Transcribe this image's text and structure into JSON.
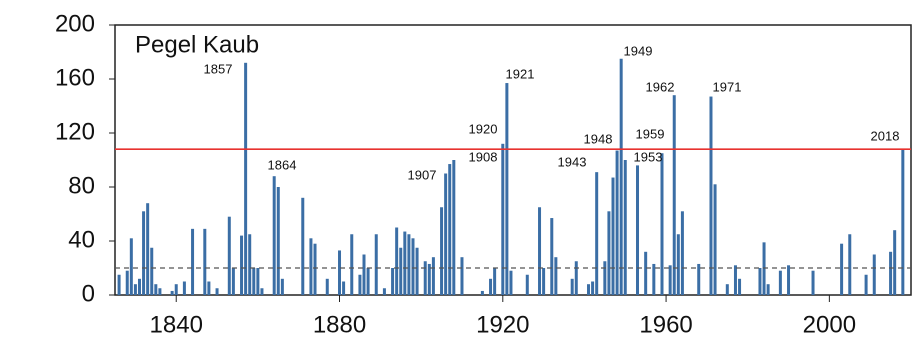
{
  "chart_data": {
    "type": "bar",
    "title": "Pegel Kaub",
    "x": [
      1826,
      1828,
      1829,
      1830,
      1831,
      1832,
      1833,
      1834,
      1835,
      1836,
      1839,
      1840,
      1842,
      1844,
      1847,
      1848,
      1850,
      1853,
      1854,
      1856,
      1857,
      1858,
      1859,
      1860,
      1861,
      1864,
      1865,
      1866,
      1871,
      1873,
      1874,
      1877,
      1880,
      1881,
      1883,
      1885,
      1886,
      1887,
      1889,
      1891,
      1893,
      1894,
      1895,
      1896,
      1897,
      1898,
      1899,
      1901,
      1902,
      1903,
      1905,
      1906,
      1907,
      1908,
      1910,
      1915,
      1917,
      1918,
      1920,
      1921,
      1922,
      1926,
      1929,
      1930,
      1932,
      1933,
      1937,
      1938,
      1941,
      1942,
      1943,
      1945,
      1946,
      1947,
      1948,
      1949,
      1950,
      1953,
      1955,
      1957,
      1959,
      1961,
      1962,
      1963,
      1964,
      1968,
      1971,
      1972,
      1975,
      1977,
      1978,
      1983,
      1984,
      1985,
      1988,
      1990,
      1996,
      2003,
      2005,
      2009,
      2011,
      2015,
      2016,
      2018
    ],
    "values": [
      15,
      18,
      42,
      8,
      12,
      62,
      68,
      35,
      8,
      5,
      3,
      8,
      10,
      49,
      49,
      10,
      5,
      58,
      20,
      44,
      172,
      45,
      20,
      20,
      5,
      88,
      80,
      12,
      72,
      42,
      38,
      12,
      33,
      10,
      45,
      15,
      30,
      20,
      45,
      5,
      20,
      50,
      35,
      47,
      45,
      42,
      35,
      25,
      23,
      28,
      65,
      90,
      97,
      100,
      28,
      3,
      12,
      20,
      112,
      157,
      18,
      15,
      65,
      20,
      57,
      28,
      12,
      25,
      8,
      10,
      91,
      25,
      62,
      87,
      107,
      175,
      100,
      96,
      32,
      23,
      105,
      22,
      148,
      45,
      62,
      23,
      147,
      82,
      8,
      22,
      12,
      20,
      39,
      8,
      18,
      22,
      18,
      38,
      45,
      15,
      30,
      32,
      48,
      108
    ],
    "color": "#3b6ea5",
    "xlim": [
      1825,
      2020
    ],
    "ylim": [
      0,
      200
    ],
    "xticks": [
      1840,
      1880,
      1920,
      1960,
      2000
    ],
    "yticks": [
      0,
      40,
      80,
      120,
      160,
      200
    ],
    "reference_lines": [
      {
        "value": 108,
        "color": "#e8312f",
        "style": "solid"
      },
      {
        "value": 20,
        "color": "#555555",
        "style": "dashed"
      }
    ],
    "annotations": [
      "1857",
      "1864",
      "1907",
      "1908",
      "1920",
      "1921",
      "1943",
      "1948",
      "1949",
      "1953",
      "1959",
      "1962",
      "1971",
      "2018"
    ]
  }
}
